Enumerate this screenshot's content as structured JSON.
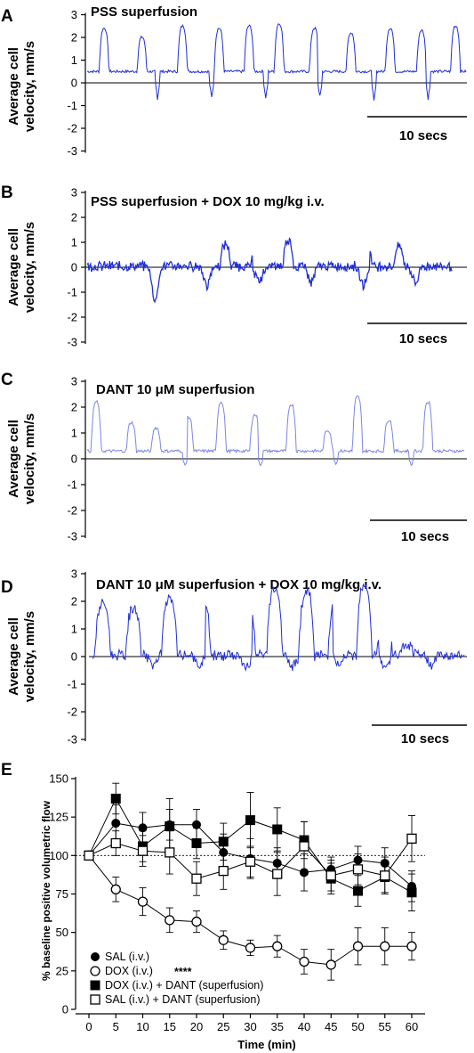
{
  "chart_data": [
    {
      "type": "line",
      "panel": "A",
      "title": "PSS superfusion",
      "ylabel_line1": "Average cell",
      "ylabel_line2": "velocity, mm/s",
      "ylim": [
        -3,
        3
      ],
      "yticks": [
        "3",
        "2",
        "1",
        "0",
        "-1",
        "-2",
        "-3"
      ],
      "scalebar": "10 secs",
      "series_color": "#1f2fd6",
      "pattern": {
        "peaks_at_s": [
          1.3,
          4.2,
          7.3,
          10.1,
          12.4,
          14.7,
          17.4,
          20.2,
          23.2,
          25.6,
          28.2
        ],
        "peak_values": [
          2.4,
          2.0,
          2.5,
          2.4,
          2.5,
          2.6,
          2.4,
          2.2,
          2.4,
          2.3,
          2.5
        ],
        "baseline": 0.5,
        "dips": [
          -0.7,
          -0.6,
          -0.7,
          -0.6,
          -0.8,
          -0.7
        ]
      }
    },
    {
      "type": "line",
      "panel": "B",
      "title": "PSS superfusion + DOX 10 mg/kg i.v.",
      "ylabel_line1": "Average cell",
      "ylabel_line2": "velocity, mm/s",
      "ylim": [
        -3,
        3
      ],
      "yticks": [
        "3",
        "2",
        "1",
        "0",
        "-1",
        "-2",
        "-3"
      ],
      "scalebar": "10 secs",
      "series_color": "#1f2fd6",
      "pattern": {
        "peaks_at_s": [
          5.5,
          11.0,
          13.5,
          16.0,
          22.3,
          24.8
        ],
        "peak_values": [
          0.9,
          1.0,
          1.3,
          1.2,
          0.8,
          0.9
        ],
        "troughs": [
          -1.6,
          -0.9,
          -0.8,
          -0.7,
          -0.9,
          -0.8
        ]
      }
    },
    {
      "type": "line",
      "panel": "C",
      "title": "DANT 10 μM superfusion",
      "ylabel_line1": "Average cell",
      "ylabel_line2": "velocity, mm/s",
      "ylim": [
        -3,
        3
      ],
      "yticks": [
        "3",
        "2",
        "1",
        "0",
        "-1",
        "-2",
        "-3"
      ],
      "scalebar": "10 secs",
      "series_color": "#7b86e6",
      "pattern": {
        "peaks_at_s": [
          0.7,
          3.4,
          5.3,
          7.8,
          10.3,
          12.9,
          15.7,
          18.5,
          20.8,
          23.2,
          26.2
        ],
        "peak_values": [
          2.2,
          1.4,
          1.2,
          1.6,
          2.2,
          1.7,
          2.1,
          1.1,
          2.4,
          1.5,
          2.2
        ],
        "baseline": 0.3,
        "dips": [
          -0.3,
          -0.3,
          -0.2,
          -0.3
        ]
      }
    },
    {
      "type": "line",
      "panel": "D",
      "title": "DANT 10 μM superfusion + DOX 10 mg/kg i.v.",
      "ylabel_line1": "Average cell",
      "ylabel_line2": "velocity, mm/s",
      "ylim": [
        -3,
        3
      ],
      "yticks": [
        "3",
        "2",
        "1",
        "0",
        "-1",
        "-2",
        "-3"
      ],
      "scalebar": "10 secs",
      "series_color": "#1f2fd6",
      "pattern": {
        "peaks_at_s": [
          0.8,
          3.2,
          6.0,
          8.6,
          12.1,
          14.2,
          16.7,
          19.0,
          21.2,
          22.8,
          24.5
        ],
        "peak_values": [
          2.1,
          1.9,
          2.3,
          2.3,
          2.3,
          2.7,
          2.6,
          2.4,
          2.9,
          1.5,
          0.4
        ],
        "troughs": [
          -0.4,
          -0.4,
          -0.6,
          -0.5,
          -0.4,
          -0.5,
          -0.4
        ]
      }
    },
    {
      "type": "line",
      "panel": "E",
      "xlabel": "Time (min)",
      "ylabel": "% baseline positive volumetric flow",
      "x": [
        0,
        5,
        10,
        15,
        20,
        25,
        30,
        35,
        40,
        45,
        50,
        55,
        60
      ],
      "xlim": [
        -2.5,
        62
      ],
      "ylim": [
        0,
        150
      ],
      "yticks": [
        "150",
        "125",
        "100",
        "75",
        "50",
        "25",
        "0"
      ],
      "reference_line": 100,
      "series": [
        {
          "name": "SAL (i.v.)",
          "marker": "filled-circle",
          "values": [
            100,
            121,
            118,
            120,
            120,
            102,
            98,
            95,
            89,
            91,
            97,
            95,
            80
          ],
          "errors": [
            0,
            12,
            10,
            10,
            10,
            12,
            13,
            10,
            12,
            8,
            9,
            10,
            10
          ]
        },
        {
          "name": "DOX (i.v.)",
          "marker": "open-circle",
          "annotation": "****",
          "values": [
            100,
            78,
            70,
            58,
            57,
            45,
            40,
            41,
            31,
            29,
            41,
            41,
            41
          ],
          "errors": [
            0,
            8,
            9,
            8,
            7,
            6,
            5,
            7,
            8,
            10,
            12,
            12,
            9
          ]
        },
        {
          "name": "DOX (i.v.) + DANT (superfusion)",
          "marker": "filled-square",
          "values": [
            100,
            137,
            106,
            119,
            108,
            109,
            123,
            117,
            110,
            85,
            77,
            86,
            76
          ],
          "errors": [
            0,
            10,
            10,
            18,
            10,
            12,
            18,
            14,
            12,
            10,
            10,
            10,
            12
          ]
        },
        {
          "name": "SAL (i.v.) + DANT (superfusion)",
          "marker": "open-square",
          "values": [
            100,
            108,
            103,
            102,
            85,
            90,
            96,
            88,
            106,
            87,
            91,
            87,
            111
          ],
          "errors": [
            0,
            8,
            10,
            14,
            11,
            12,
            10,
            14,
            16,
            10,
            10,
            12,
            15
          ]
        }
      ]
    }
  ]
}
